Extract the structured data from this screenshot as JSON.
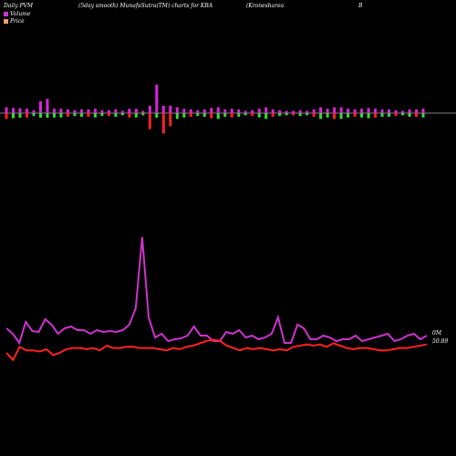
{
  "header": {
    "left": "Daily PVM",
    "middle": "(5day smooth) MunafaSutra(TM) charts for KBA",
    "right1": "(Kronesharea",
    "right2": "B"
  },
  "legend": [
    {
      "label": "Volume",
      "color": "#cc33cc"
    },
    {
      "label": "Price",
      "color": "#ff9966"
    }
  ],
  "colors": {
    "positive": "#dd22dd",
    "negative": "#ff2222",
    "green": "#33dd33",
    "volume_line": "#cc33cc",
    "price_line": "#ff2222",
    "axis": "#aaaaaa"
  },
  "labels": {
    "volume_value": "0M",
    "price_value": "50.89"
  },
  "chart_data": {
    "type": "line",
    "bars": [
      -8,
      -7,
      4,
      -6,
      -4,
      10,
      12,
      -6,
      -6,
      -5,
      -4,
      -5,
      -5,
      -6,
      -4,
      -4,
      -5,
      -3,
      -6,
      -6,
      -3,
      -22,
      24,
      -28,
      -18,
      -8,
      -6,
      -5,
      -4,
      -5,
      -7,
      -8,
      -5,
      -6,
      -5,
      -3,
      -4,
      -6,
      -8,
      -5,
      -4,
      -3,
      -3,
      -4,
      -3,
      -5,
      -8,
      -6,
      -8,
      -8,
      -6,
      -5,
      -6,
      -7,
      -6,
      -5,
      -5,
      -4,
      -3,
      -5,
      -5,
      -6
    ],
    "volume": [
      28,
      22,
      12,
      35,
      25,
      24,
      38,
      32,
      22,
      28,
      30,
      26,
      26,
      22,
      26,
      24,
      25,
      24,
      26,
      32,
      50,
      128,
      40,
      18,
      22,
      14,
      16,
      17,
      20,
      30,
      20,
      20,
      14,
      14,
      24,
      22,
      26,
      18,
      20,
      16,
      18,
      22,
      40,
      12,
      12,
      32,
      28,
      16,
      16,
      20,
      18,
      14,
      16,
      16,
      20,
      14,
      16,
      18,
      20,
      22,
      14,
      16,
      20,
      22,
      16,
      20
    ],
    "price": [
      14,
      8,
      19,
      16,
      16,
      15,
      17,
      12,
      14,
      17,
      18,
      18,
      17,
      18,
      16,
      20,
      18,
      18,
      19,
      19,
      18,
      18,
      18,
      17,
      16,
      18,
      17,
      19,
      20,
      22,
      24,
      25,
      24,
      20,
      18,
      16,
      18,
      17,
      18,
      17,
      16,
      17,
      16,
      19,
      20,
      21,
      20,
      21,
      19,
      22,
      20,
      18,
      17,
      18,
      18,
      17,
      16,
      16,
      17,
      18,
      18,
      19,
      20,
      21
    ]
  }
}
